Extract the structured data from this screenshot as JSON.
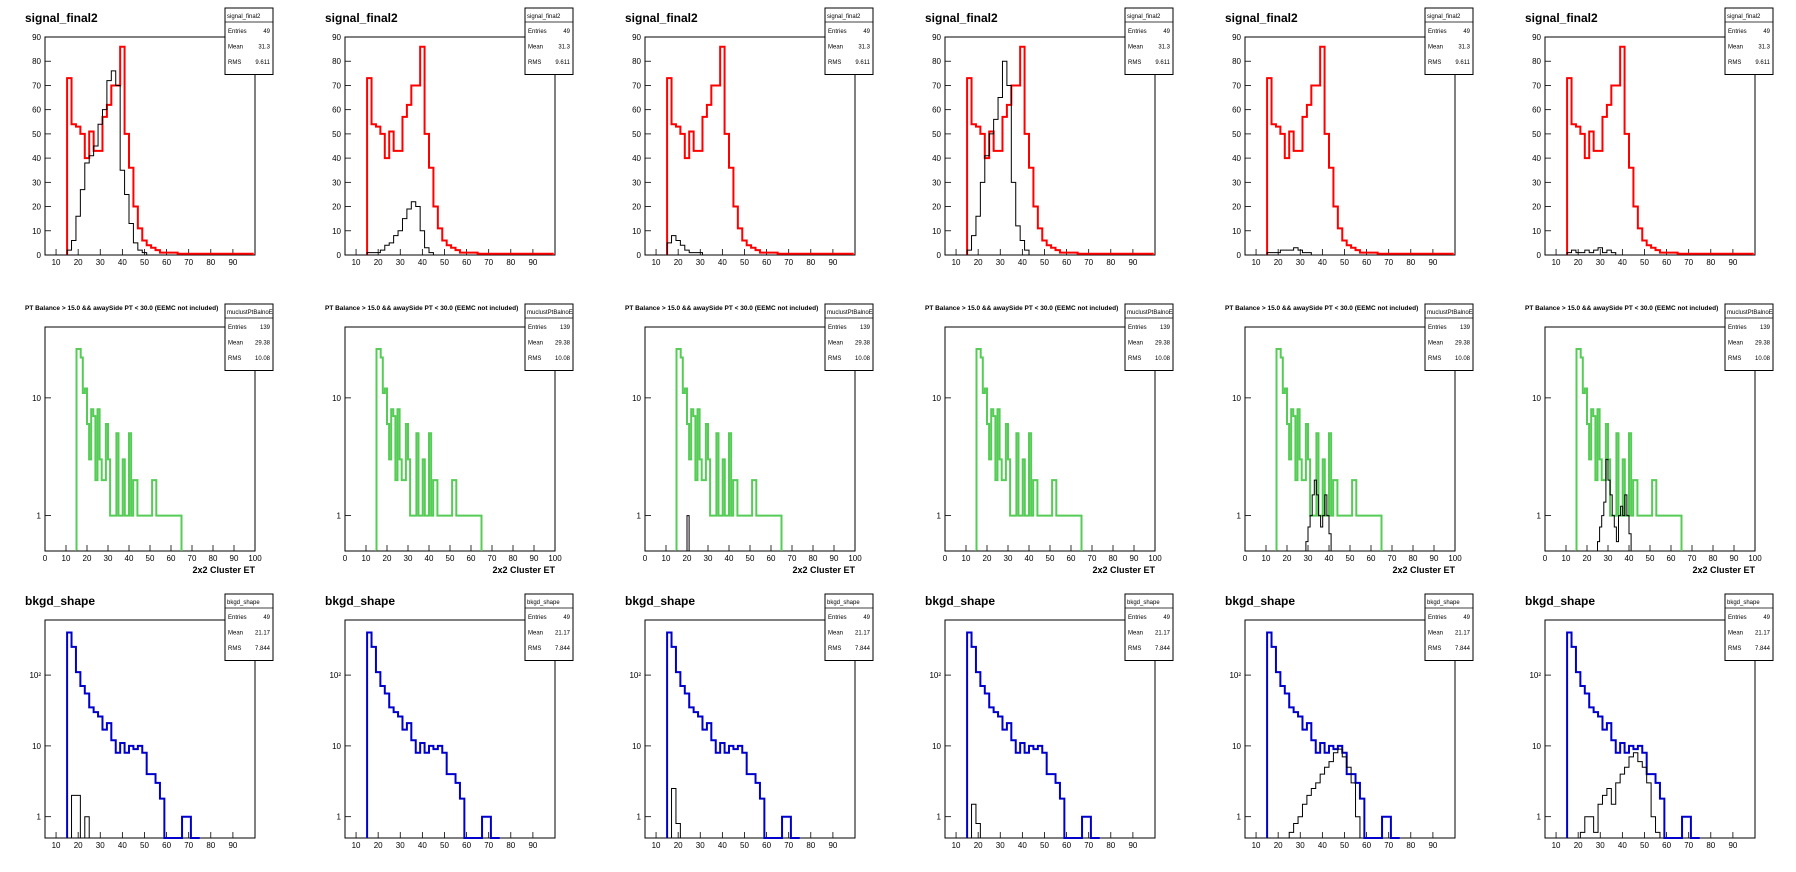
{
  "row_templates": [
    {
      "title": "signal_final2",
      "stats": {
        "name": "signal_final2",
        "rows": [
          [
            "Entries",
            "49"
          ],
          [
            "Mean",
            "31.3"
          ],
          [
            "RMS",
            "9.611"
          ]
        ]
      },
      "scale": "linear",
      "ylim": [
        0,
        90
      ],
      "xlim": [
        5,
        100
      ],
      "yticks": [
        "0",
        "10",
        "20",
        "30",
        "40",
        "50",
        "60",
        "70",
        "80",
        "90"
      ],
      "xticks": [
        "10",
        "20",
        "30",
        "40",
        "50",
        "60",
        "70",
        "80",
        "90"
      ],
      "xlabel": "",
      "main_color": "#ff0000",
      "main_series": {
        "bin_width": 2,
        "x_start": 15,
        "values": [
          73,
          54,
          53,
          50,
          40,
          51,
          43,
          43,
          57,
          62,
          70,
          70,
          86,
          50,
          36,
          20,
          11,
          6,
          4,
          3,
          2,
          1,
          1,
          1,
          1,
          0.5,
          0.5,
          0.5,
          0.5,
          0.5,
          0.5,
          0.5,
          0.5,
          0.5,
          0.5,
          0.5,
          0.5,
          0.5,
          0.5,
          0.5,
          0.5,
          0.5
        ]
      }
    },
    {
      "title": "PT Balance > 15.0 && awaySide PT < 30.0 (EEMC not included)",
      "stats": {
        "name": "muclustPtBalnoE",
        "rows": [
          [
            "Entries",
            "139"
          ],
          [
            "Mean",
            "29.38"
          ],
          [
            "RMS",
            "10.08"
          ]
        ]
      },
      "scale": "log",
      "ylim": [
        0.5,
        40
      ],
      "xlim": [
        0,
        100
      ],
      "yticks": [
        "1",
        "10"
      ],
      "xticks": [
        "0",
        "10",
        "20",
        "30",
        "40",
        "50",
        "60",
        "70",
        "80",
        "90",
        "100"
      ],
      "xlabel": "2x2 Cluster ET",
      "main_color": "#55cc55",
      "main_series": {
        "bin_width": 1,
        "x_start": 15,
        "values": [
          26,
          26,
          22,
          11,
          12,
          6,
          3,
          8,
          7,
          2,
          8,
          3,
          2,
          2,
          6,
          3,
          1,
          1,
          1,
          5,
          1,
          1,
          3,
          1,
          1,
          5,
          1,
          2,
          2,
          1,
          1,
          1,
          1,
          1,
          1,
          1,
          2,
          2,
          1,
          1,
          1,
          1,
          1,
          1,
          1,
          1,
          1,
          1,
          1,
          1
        ]
      }
    },
    {
      "title": "bkgd_shape",
      "stats": {
        "name": "bkgd_shape",
        "rows": [
          [
            "Entries",
            "49"
          ],
          [
            "Mean",
            "21.17"
          ],
          [
            "RMS",
            "7.844"
          ]
        ]
      },
      "scale": "log",
      "ylim": [
        0.5,
        600
      ],
      "xlim": [
        5,
        100
      ],
      "yticks": [
        "1",
        "10",
        "10²"
      ],
      "xticks": [
        "10",
        "20",
        "30",
        "40",
        "50",
        "60",
        "70",
        "80",
        "90"
      ],
      "xlabel": "",
      "main_color": "#0000cc",
      "main_series": {
        "bin_width": 2,
        "x_start": 15,
        "values": [
          400,
          250,
          110,
          70,
          55,
          35,
          30,
          26,
          17,
          21,
          12,
          8,
          11,
          8,
          10,
          9,
          10,
          8,
          4,
          4,
          3,
          1.8,
          0.5,
          0.5,
          0.5,
          0.5,
          1,
          1,
          0.5,
          0.5
        ]
      }
    }
  ],
  "panels_overlay": [
    [
      [
        2,
        6,
        16,
        27,
        38,
        41,
        45,
        54,
        60,
        72,
        76,
        70,
        35,
        25,
        13,
        5,
        2,
        1
      ],
      [
        1,
        1,
        1,
        2,
        4,
        5,
        8,
        10,
        15,
        19,
        22,
        20,
        10,
        3,
        1
      ],
      [
        5,
        8,
        6,
        4,
        2,
        1,
        1,
        1
      ],
      [
        2,
        8,
        16,
        30,
        41,
        50,
        56,
        65,
        80,
        70,
        30,
        12,
        6,
        2
      ],
      [
        1,
        1,
        1,
        2,
        2,
        2,
        3,
        2,
        1,
        1
      ],
      [
        1,
        2,
        1,
        1,
        2,
        1,
        2,
        3,
        1,
        2,
        1
      ]
    ],
    [
      [
        0,
        0,
        0,
        0,
        0,
        0,
        0,
        0,
        0,
        0,
        0,
        0,
        0,
        0
      ],
      [
        0,
        0,
        0,
        0,
        0,
        0,
        0,
        0,
        0,
        0,
        0,
        0,
        0,
        0
      ],
      [
        0,
        0,
        0,
        0,
        0,
        1,
        0,
        0,
        0,
        0,
        0,
        0
      ],
      [
        0,
        0,
        0,
        0,
        0,
        0,
        0,
        0,
        0,
        0,
        0,
        0
      ],
      [
        0,
        0,
        0,
        0,
        0,
        0,
        0,
        0,
        0,
        0,
        0,
        0,
        0,
        0,
        0.6,
        0.8,
        1,
        1.5,
        2,
        1.5,
        1,
        0.8,
        1,
        1.5,
        1,
        0.7
      ],
      [
        0,
        0,
        0,
        0,
        0,
        0,
        0,
        0,
        0,
        0,
        0.6,
        0.8,
        1,
        1.3,
        3,
        2,
        1.5,
        1,
        0.8,
        0.6,
        1,
        1.2,
        1,
        1.5,
        1,
        0.7
      ]
    ],
    [
      [
        0.5,
        2,
        2,
        0.5,
        1,
        0.5
      ],
      [],
      [
        0.5,
        2.5,
        0.8,
        0.5
      ],
      [
        0.5,
        1.5,
        0.8,
        0.5
      ],
      [
        0.5,
        0.5,
        0.5,
        0.5,
        0.5,
        0.6,
        0.8,
        1,
        1.5,
        2,
        2.5,
        3,
        4,
        5,
        6,
        8,
        9,
        7,
        5,
        3,
        1
      ],
      [
        0.5,
        0.5,
        0.5,
        0.6,
        1,
        1,
        0.6,
        1.5,
        2,
        2.5,
        1.5,
        3,
        4,
        5,
        7,
        8,
        6,
        5,
        3,
        1,
        0.6
      ]
    ]
  ]
}
